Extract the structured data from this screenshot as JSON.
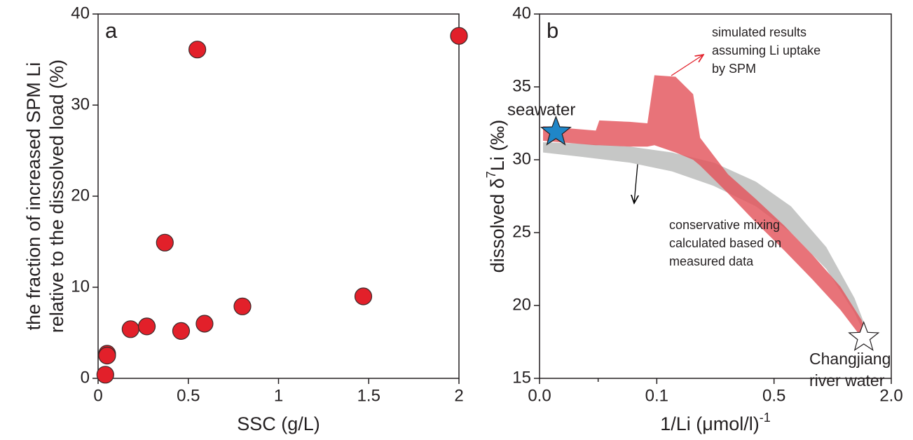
{
  "chart_data": [
    {
      "type": "scatter",
      "panel_label": "a",
      "x_label": "SSC (g/L)",
      "y_label": [
        "the fraction of increased SPM Li",
        "relative to the dissolved load (%)"
      ],
      "x": [
        0.04,
        0.05,
        0.05,
        0.18,
        0.27,
        0.37,
        0.46,
        0.55,
        0.59,
        0.8,
        1.47,
        2.0
      ],
      "values": [
        0.4,
        2.7,
        2.5,
        5.4,
        5.7,
        14.9,
        5.2,
        36.1,
        6.0,
        7.9,
        9.0,
        37.6
      ],
      "color": "#e2202a",
      "xlim": [
        0,
        2
      ],
      "xticks": [
        0,
        0.5,
        1,
        1.5,
        2
      ],
      "ylim": [
        0,
        40
      ],
      "yticks": [
        0,
        10,
        20,
        30,
        40
      ]
    },
    {
      "type": "area",
      "panel_label": "b",
      "x_label": [
        "1/Li (μmol/l)",
        "-1"
      ],
      "y_label": [
        "dissolved δ",
        "7",
        "Li (‰)"
      ],
      "x_scale": "piecewise",
      "xlim": [
        0,
        2.0
      ],
      "xticks": [
        {
          "value": 0,
          "label": "0.0"
        },
        {
          "value": 0.1,
          "label": "0.1"
        },
        {
          "value": 0.5,
          "label": "0.5"
        },
        {
          "value": 2.0,
          "label": "2.0"
        }
      ],
      "x_minor_ticks": [
        0.05
      ],
      "ylim": [
        15,
        40
      ],
      "yticks": [
        15,
        20,
        25,
        30,
        35,
        40
      ],
      "series": [
        {
          "color": "#c6c7c6",
          "x": [
            0.003,
            0.036,
            0.077,
            0.152,
            0.295,
            0.438,
            0.717,
            1.169,
            1.53,
            1.71
          ],
          "upper": [
            31.2,
            31.1,
            30.9,
            30.5,
            29.8,
            28.5,
            26.8,
            24.0,
            20.5,
            18.0
          ],
          "lower": [
            30.5,
            30.2,
            29.8,
            29.2,
            28.2,
            26.8,
            25.0,
            22.5,
            19.5,
            17.5
          ]
        },
        {
          "color": "#e3545c",
          "x": [
            0.003,
            0.048,
            0.051,
            0.077,
            0.092,
            0.098,
            0.164,
            0.224,
            0.248,
            0.343,
            0.438,
            0.627,
            0.988,
            1.349,
            1.62,
            1.71
          ],
          "upper": [
            32.3,
            32.0,
            32.7,
            32.6,
            32.5,
            35.8,
            35.7,
            34.5,
            31.5,
            29.0,
            27.3,
            25.5,
            23.5,
            21.3,
            19.0,
            17.8
          ],
          "lower": [
            31.3,
            31.0,
            31.0,
            30.9,
            30.9,
            31.0,
            30.5,
            30.0,
            29.6,
            27.7,
            25.7,
            23.8,
            21.8,
            19.7,
            17.8,
            17.6
          ]
        }
      ],
      "markers": [
        {
          "x": 0.014,
          "y": 31.9,
          "color": "#1f86c8",
          "label": [
            "seawater"
          ]
        },
        {
          "x": 1.648,
          "y": 17.8,
          "color": "#ffffff",
          "label": [
            "Changjiang",
            "river water"
          ]
        }
      ],
      "annotations": [
        {
          "text": [
            "simulated results",
            "assuming Li uptake",
            "by SPM"
          ],
          "color": "#e2202a"
        },
        {
          "text": [
            "conservative mixing",
            "calculated based on",
            "measured data"
          ],
          "color": "#000000"
        }
      ]
    }
  ]
}
